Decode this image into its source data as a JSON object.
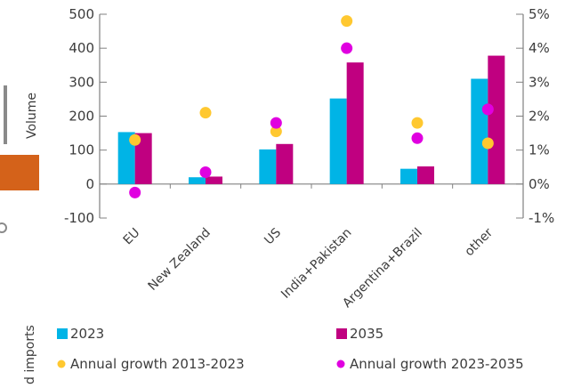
{
  "chart_data": {
    "type": "bar",
    "title": "",
    "xlabel": "",
    "ylabel": "Volume",
    "y2label": "",
    "ylim": [
      -100,
      500
    ],
    "y2lim": [
      -0.01,
      0.05
    ],
    "grid": false,
    "legend_position": "bottom",
    "categories": [
      "EU",
      "New Zealand",
      "US",
      "India+Pakistan",
      "Argentina+Brazil",
      "other"
    ],
    "yticks": [
      -100,
      0,
      100,
      200,
      300,
      400,
      500
    ],
    "ytick_labels": [
      "-100",
      "0",
      "100",
      "200",
      "300",
      "400",
      "500"
    ],
    "y2ticks": [
      -0.01,
      0,
      0.01,
      0.02,
      0.03,
      0.04,
      0.05
    ],
    "y2tick_labels": [
      "-1%",
      "0%",
      "1%",
      "2%",
      "3%",
      "4%",
      "5%"
    ],
    "series": [
      {
        "name": "2023",
        "kind": "bar",
        "axis": "left",
        "color": "#00b4e6",
        "values": [
          153,
          20,
          102,
          252,
          45,
          310
        ]
      },
      {
        "name": "2035",
        "kind": "bar",
        "axis": "left",
        "color": "#c00080",
        "values": [
          150,
          22,
          118,
          358,
          52,
          378
        ]
      },
      {
        "name": "Annual growth 2013-2023",
        "kind": "scatter",
        "axis": "right",
        "color": "#ffc830",
        "values": [
          0.013,
          0.021,
          0.0155,
          0.048,
          0.018,
          0.012
        ]
      },
      {
        "name": "Annual growth 2023-2035",
        "kind": "scatter",
        "axis": "right",
        "color": "#e000e0",
        "values": [
          -0.0025,
          0.0035,
          0.018,
          0.04,
          0.0135,
          0.022
        ]
      }
    ]
  },
  "left_strip": {
    "text_top": "",
    "text_bottom": "d imports",
    "box_color": "#d4621a"
  },
  "colors": {
    "axis": "#808080",
    "text": "#3c3c3c"
  }
}
